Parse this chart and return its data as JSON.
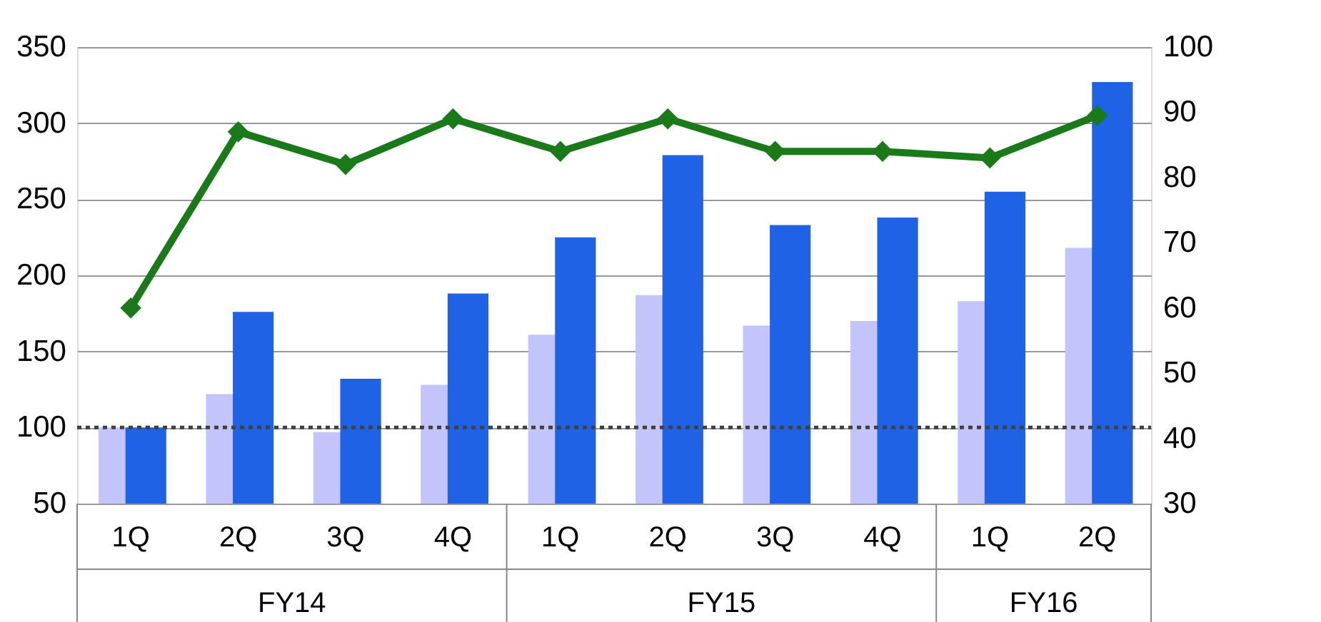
{
  "chart_data": {
    "type": "bar",
    "categories": [
      "1Q",
      "2Q",
      "3Q",
      "4Q",
      "1Q",
      "2Q",
      "3Q",
      "4Q",
      "1Q",
      "2Q"
    ],
    "annotations": [
      "FY14",
      "FY15",
      "FY16"
    ],
    "series": [
      {
        "color": "#c4c4fc",
        "values": [
          100,
          122,
          97,
          128,
          161,
          187,
          167,
          170,
          183,
          218
        ]
      },
      {
        "color": "#1f62e6",
        "values": [
          100,
          176,
          132,
          188,
          225,
          279,
          233,
          238,
          255,
          327
        ]
      },
      {
        "type": "line",
        "axis": "y2",
        "color": "#1a7a1a",
        "values": [
          60,
          87,
          82,
          89,
          84,
          89,
          84,
          84,
          83,
          89.5
        ]
      }
    ],
    "ylim": [
      50,
      350
    ],
    "yticks": [
      50,
      100,
      150,
      200,
      250,
      300,
      350
    ],
    "y2lim": [
      30,
      100
    ],
    "y2ticks": [
      30,
      40,
      50,
      60,
      70,
      80,
      90,
      100
    ],
    "ref_lines": [
      {
        "axis": "y",
        "value": 100,
        "color": "#404040",
        "line_style": "dotted"
      }
    ],
    "grid": "y",
    "marker": "diamond",
    "line_style": "solid"
  }
}
